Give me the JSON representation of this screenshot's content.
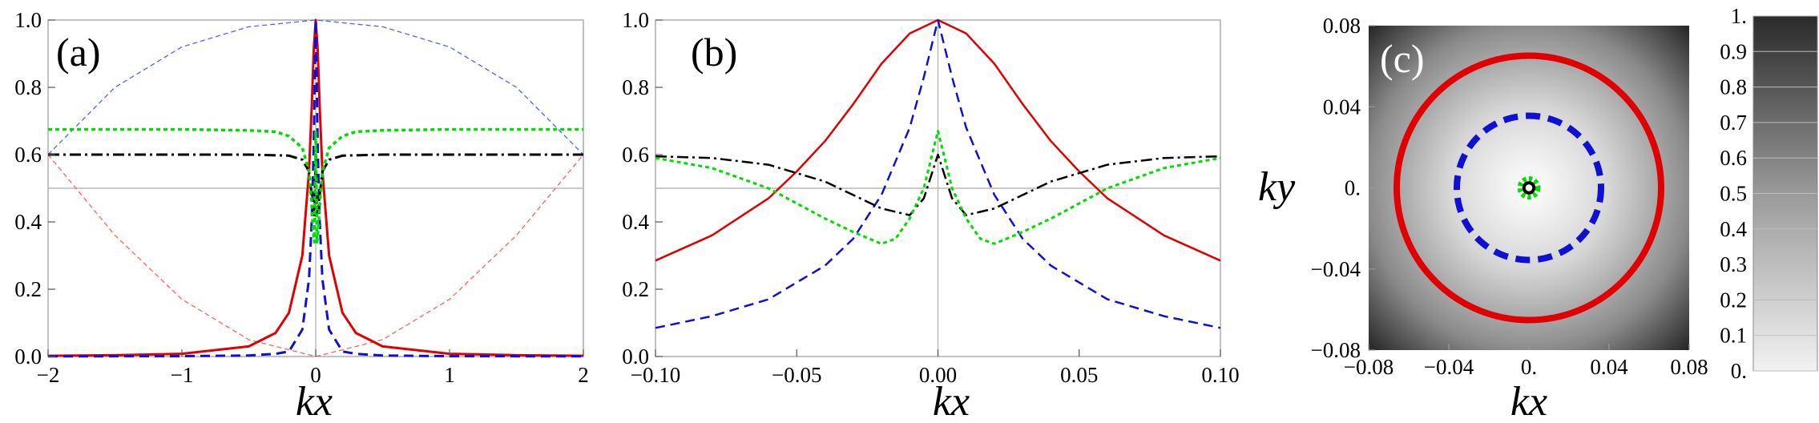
{
  "chart_data": [
    {
      "panel": "(a)",
      "type": "line",
      "xlabel": "kx",
      "ylabel": "",
      "xlim": [
        -2,
        2
      ],
      "ylim": [
        0,
        1
      ],
      "xticks": [
        -2,
        -1,
        0,
        1,
        2
      ],
      "xtick_labels": [
        "−2",
        "−1",
        "0",
        "1",
        "2"
      ],
      "yticks": [
        0,
        0.2,
        0.4,
        0.6,
        0.8,
        1
      ],
      "ytick_labels": [
        "0.0",
        "0.2",
        "0.4",
        "0.6",
        "0.8",
        "1.0"
      ],
      "ref_lines": {
        "h": 0.5,
        "v": 0
      },
      "series": [
        {
          "x": [
            -2,
            -1.5,
            -1,
            -0.5,
            -0.3,
            -0.2,
            -0.1,
            -0.05,
            -0.03,
            -0.015,
            0,
            0.015,
            0.03,
            0.05,
            0.1,
            0.2,
            0.3,
            0.5,
            1,
            1.5,
            2
          ],
          "y": [
            0.002,
            0.004,
            0.008,
            0.03,
            0.07,
            0.13,
            0.3,
            0.55,
            0.74,
            0.91,
            1.0,
            0.91,
            0.74,
            0.55,
            0.3,
            0.13,
            0.07,
            0.03,
            0.008,
            0.004,
            0.002
          ],
          "color": "#e00000",
          "dash": "",
          "width": 3
        },
        {
          "x": [
            -2,
            -1,
            -0.5,
            -0.3,
            -0.2,
            -0.1,
            -0.05,
            -0.03,
            -0.015,
            0,
            0.015,
            0.03,
            0.05,
            0.1,
            0.2,
            0.3,
            0.5,
            1,
            2
          ],
          "y": [
            0.0005,
            0.001,
            0.003,
            0.008,
            0.015,
            0.08,
            0.23,
            0.4,
            0.62,
            1.0,
            0.62,
            0.4,
            0.23,
            0.08,
            0.015,
            0.008,
            0.003,
            0.001,
            0.0005
          ],
          "color": "#1010d0",
          "dash": "12,7",
          "width": 3
        },
        {
          "x": [
            -2,
            -1,
            -0.5,
            -0.3,
            -0.2,
            -0.1,
            -0.05,
            -0.03,
            -0.02,
            -0.01,
            0,
            0.01,
            0.02,
            0.03,
            0.05,
            0.1,
            0.2,
            0.3,
            0.5,
            1,
            2
          ],
          "y": [
            0.675,
            0.675,
            0.672,
            0.668,
            0.655,
            0.62,
            0.55,
            0.45,
            0.38,
            0.34,
            0.67,
            0.34,
            0.38,
            0.45,
            0.55,
            0.62,
            0.655,
            0.668,
            0.672,
            0.675,
            0.675
          ],
          "color": "#00dd00",
          "dash": "5,4",
          "width": 3.5
        },
        {
          "x": [
            -2,
            -1,
            -0.5,
            -0.2,
            -0.1,
            -0.05,
            -0.03,
            -0.01,
            0,
            0.01,
            0.03,
            0.05,
            0.1,
            0.2,
            0.5,
            1,
            2
          ],
          "y": [
            0.6,
            0.6,
            0.6,
            0.597,
            0.585,
            0.55,
            0.48,
            0.42,
            0.6,
            0.42,
            0.48,
            0.55,
            0.585,
            0.597,
            0.6,
            0.6,
            0.6
          ],
          "color": "#000000",
          "dash": "14,5,3,5",
          "width": 3
        },
        {
          "x": [
            -2,
            -1.5,
            -1,
            -0.5,
            0,
            0.5,
            1,
            1.5,
            2
          ],
          "y": [
            0.6,
            0.8,
            0.92,
            0.98,
            1.0,
            0.98,
            0.92,
            0.8,
            0.6
          ],
          "color": "#5060ff",
          "dash": "6,4",
          "width": 1.3
        },
        {
          "x": [
            -2,
            -1.5,
            -1,
            -0.5,
            0,
            0.5,
            1,
            1.5,
            2
          ],
          "y": [
            0.6,
            0.36,
            0.17,
            0.05,
            0.0,
            0.05,
            0.17,
            0.36,
            0.6
          ],
          "color": "#ff6060",
          "dash": "6,4",
          "width": 1.3
        }
      ]
    },
    {
      "panel": "(b)",
      "type": "line",
      "xlabel": "kx",
      "ylabel": "",
      "xlim": [
        -0.1,
        0.1
      ],
      "ylim": [
        0,
        1
      ],
      "xticks": [
        -0.1,
        -0.05,
        0,
        0.05,
        0.1
      ],
      "xtick_labels": [
        "−0.10",
        "−0.05",
        "0.00",
        "0.05",
        "0.10"
      ],
      "yticks": [
        0,
        0.2,
        0.4,
        0.6,
        0.8,
        1
      ],
      "ytick_labels": [
        "0.0",
        "0.2",
        "0.4",
        "0.6",
        "0.8",
        "1.0"
      ],
      "ref_lines": {
        "h": 0.5,
        "v": 0
      },
      "series": [
        {
          "x": [
            -0.1,
            -0.08,
            -0.06,
            -0.05,
            -0.04,
            -0.03,
            -0.02,
            -0.01,
            0,
            0.01,
            0.02,
            0.03,
            0.04,
            0.05,
            0.06,
            0.08,
            0.1
          ],
          "y": [
            0.285,
            0.36,
            0.47,
            0.55,
            0.64,
            0.75,
            0.87,
            0.96,
            1.0,
            0.96,
            0.87,
            0.75,
            0.64,
            0.55,
            0.47,
            0.36,
            0.285
          ],
          "color": "#e00000",
          "dash": "",
          "width": 2.5
        },
        {
          "x": [
            -0.1,
            -0.08,
            -0.06,
            -0.04,
            -0.03,
            -0.02,
            -0.01,
            -0.005,
            0,
            0.005,
            0.01,
            0.02,
            0.03,
            0.04,
            0.06,
            0.08,
            0.1
          ],
          "y": [
            0.085,
            0.12,
            0.17,
            0.27,
            0.35,
            0.48,
            0.68,
            0.83,
            1.0,
            0.83,
            0.68,
            0.48,
            0.35,
            0.27,
            0.17,
            0.12,
            0.085
          ],
          "color": "#1010d0",
          "dash": "12,7",
          "width": 2.5
        },
        {
          "x": [
            -0.1,
            -0.08,
            -0.06,
            -0.04,
            -0.03,
            -0.02,
            -0.015,
            -0.01,
            -0.005,
            0,
            0.005,
            0.01,
            0.015,
            0.02,
            0.03,
            0.04,
            0.06,
            0.08,
            0.1
          ],
          "y": [
            0.59,
            0.56,
            0.5,
            0.41,
            0.37,
            0.335,
            0.35,
            0.41,
            0.5,
            0.67,
            0.5,
            0.41,
            0.35,
            0.335,
            0.37,
            0.41,
            0.5,
            0.56,
            0.59
          ],
          "color": "#00dd00",
          "dash": "5,4",
          "width": 3
        },
        {
          "x": [
            -0.1,
            -0.08,
            -0.06,
            -0.04,
            -0.03,
            -0.02,
            -0.01,
            -0.005,
            0,
            0.005,
            0.01,
            0.02,
            0.03,
            0.04,
            0.06,
            0.08,
            0.1
          ],
          "y": [
            0.595,
            0.59,
            0.57,
            0.52,
            0.48,
            0.44,
            0.42,
            0.47,
            0.6,
            0.47,
            0.42,
            0.44,
            0.48,
            0.52,
            0.57,
            0.59,
            0.595
          ],
          "color": "#000000",
          "dash": "14,5,3,5",
          "width": 2.5
        }
      ]
    },
    {
      "panel": "(c)",
      "type": "heatmap",
      "xlabel": "kx",
      "ylabel": "ky",
      "xlim": [
        -0.08,
        0.08
      ],
      "ylim": [
        -0.08,
        0.08
      ],
      "xticks": [
        -0.08,
        -0.04,
        0,
        0.04,
        0.08
      ],
      "xtick_labels": [
        "−0.08",
        "−0.04",
        "0.",
        "0.04",
        "0.08"
      ],
      "yticks": [
        -0.08,
        -0.04,
        0,
        0.04,
        0.08
      ],
      "ytick_labels": [
        "−0.08",
        "−0.04",
        "0.",
        "0.04",
        "0.08"
      ],
      "contours": [
        {
          "radius": 0.066,
          "color": "#e00000",
          "dash": "",
          "width": 8
        },
        {
          "radius": 0.036,
          "color": "#1010d0",
          "dash": "18,10",
          "width": 8
        },
        {
          "radius": 0.0042,
          "color": "#00dd00",
          "dash": "4,3",
          "width": 8
        },
        {
          "radius": 0.0025,
          "color": "#000000",
          "dash": "",
          "width": 4
        }
      ],
      "colorbar": {
        "ticks": [
          0,
          0.1,
          0.2,
          0.3,
          0.4,
          0.5,
          0.6,
          0.7,
          0.8,
          0.9,
          1
        ],
        "tick_labels": [
          "0.",
          "0.1",
          "0.2",
          "0.3",
          "0.4",
          "0.5",
          "0.6",
          "0.7",
          "0.8",
          "0.9",
          "1."
        ]
      }
    }
  ]
}
